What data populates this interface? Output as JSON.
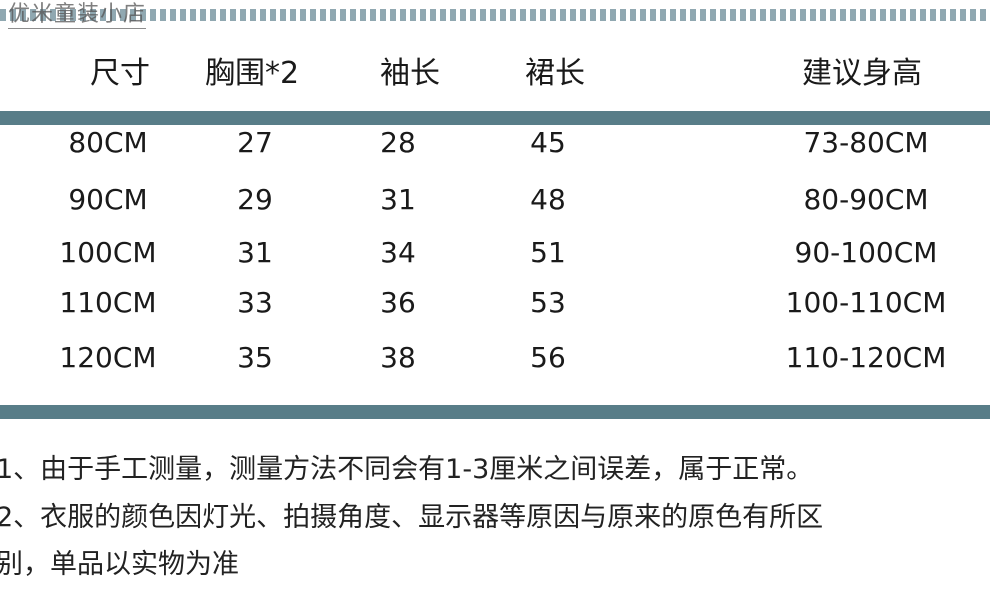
{
  "watermark": "优米童装小店",
  "colors": {
    "bar": "#587d88",
    "decoration": "#7d98a3"
  },
  "table": {
    "headers": [
      "尺寸",
      "胸围*2",
      "袖长",
      "裙长",
      "建议身高"
    ],
    "rows": [
      [
        "80CM",
        "27",
        "28",
        "45",
        "73-80CM"
      ],
      [
        "90CM",
        "29",
        "31",
        "48",
        "80-90CM"
      ],
      [
        "100CM",
        "31",
        "34",
        "51",
        "90-100CM"
      ],
      [
        "110CM",
        "33",
        "36",
        "53",
        "100-110CM"
      ],
      [
        "120CM",
        "35",
        "38",
        "56",
        "110-120CM"
      ]
    ]
  },
  "notes": [
    "1、由于手工测量，测量方法不同会有1-3厘米之间误差，属于正常。",
    "2、衣服的颜色因灯光、拍摄角度、显示器等原因与原来的原色有所区",
    "别，单品以实物为准"
  ]
}
